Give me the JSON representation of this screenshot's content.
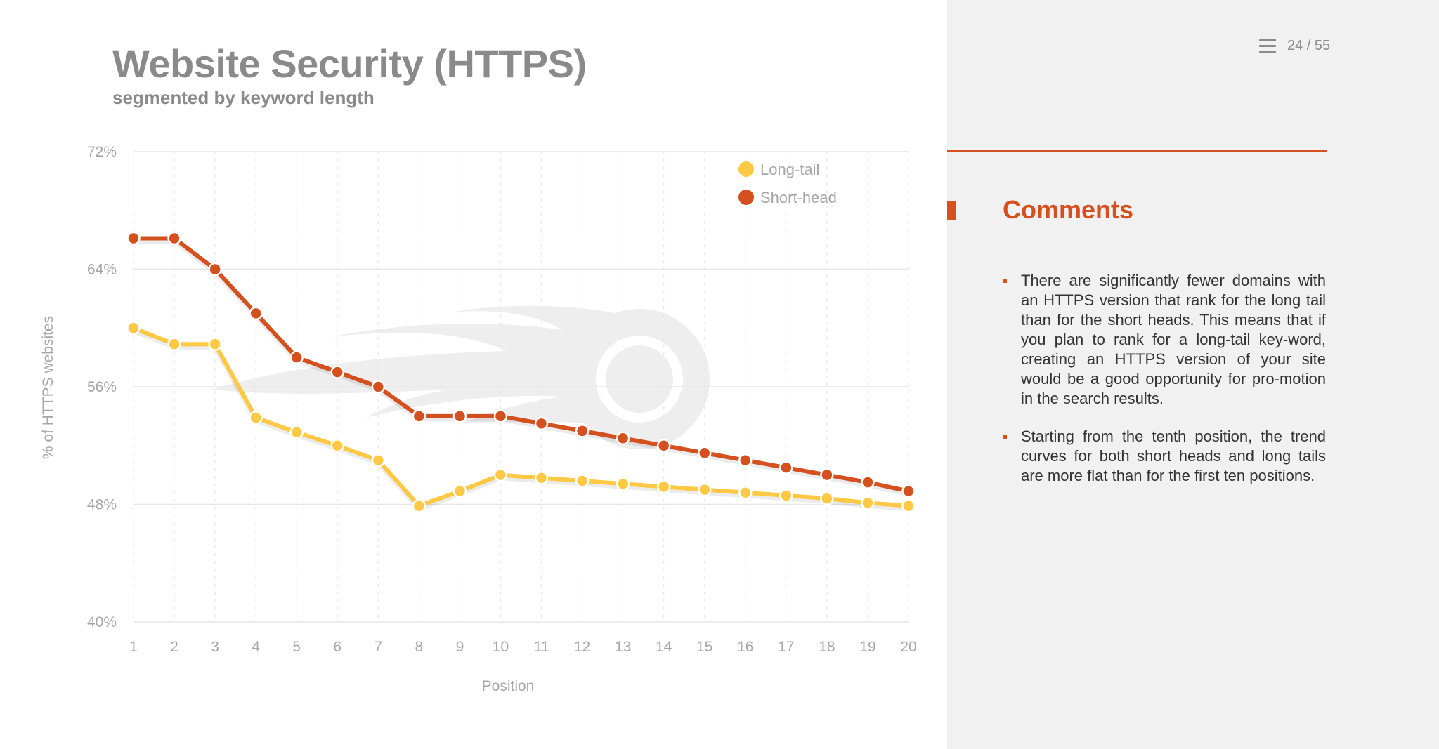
{
  "slide": {
    "title": "Website Security (HTTPS)",
    "subtitle": "segmented by keyword length",
    "page_indicator": "24 / 55",
    "menu_icon": "hamburger-menu-icon",
    "watermark_icon": "semrush-logo"
  },
  "comments": {
    "heading": "Comments",
    "items": [
      "There are significantly fewer domains with an HTTPS version that rank for the long tail than for the short heads. This means that if you plan to rank for a long-tail key-word, creating an HTTPS version of your site would be a good opportunity for pro-motion in the search results.",
      "Starting from the tenth position, the trend curves for both short heads and long tails are more flat than for the first ten positions."
    ]
  },
  "colors": {
    "accent": "#d4501f",
    "long_tail": "#ffc845",
    "short_head": "#d4501f",
    "title_gray": "#8a8a8a",
    "panel_bg": "#f1f1f1"
  },
  "chart_data": {
    "type": "line",
    "xlabel": "Position",
    "ylabel": "% of HTTPS websites",
    "x": [
      1,
      2,
      3,
      4,
      5,
      6,
      7,
      8,
      9,
      10,
      11,
      12,
      13,
      14,
      15,
      16,
      17,
      18,
      19,
      20
    ],
    "ylim": [
      40,
      72
    ],
    "yticks": [
      40,
      48,
      56,
      64,
      72
    ],
    "ytick_labels": [
      "40%",
      "48%",
      "56%",
      "64%",
      "72%"
    ],
    "grid": true,
    "legend_position": "top-right",
    "series": [
      {
        "name": "Long-tail",
        "color": "#ffc845",
        "values": [
          60.0,
          58.9,
          58.9,
          53.9,
          52.9,
          52.0,
          51.0,
          47.9,
          48.9,
          50.0,
          49.8,
          49.6,
          49.4,
          49.2,
          49.0,
          48.8,
          48.6,
          48.4,
          48.1,
          47.9
        ]
      },
      {
        "name": "Short-head",
        "color": "#d4501f",
        "values": [
          66.1,
          66.1,
          64.0,
          61.0,
          58.0,
          57.0,
          56.0,
          54.0,
          54.0,
          54.0,
          53.5,
          53.0,
          52.5,
          52.0,
          51.5,
          51.0,
          50.5,
          50.0,
          49.5,
          48.9
        ]
      }
    ]
  }
}
